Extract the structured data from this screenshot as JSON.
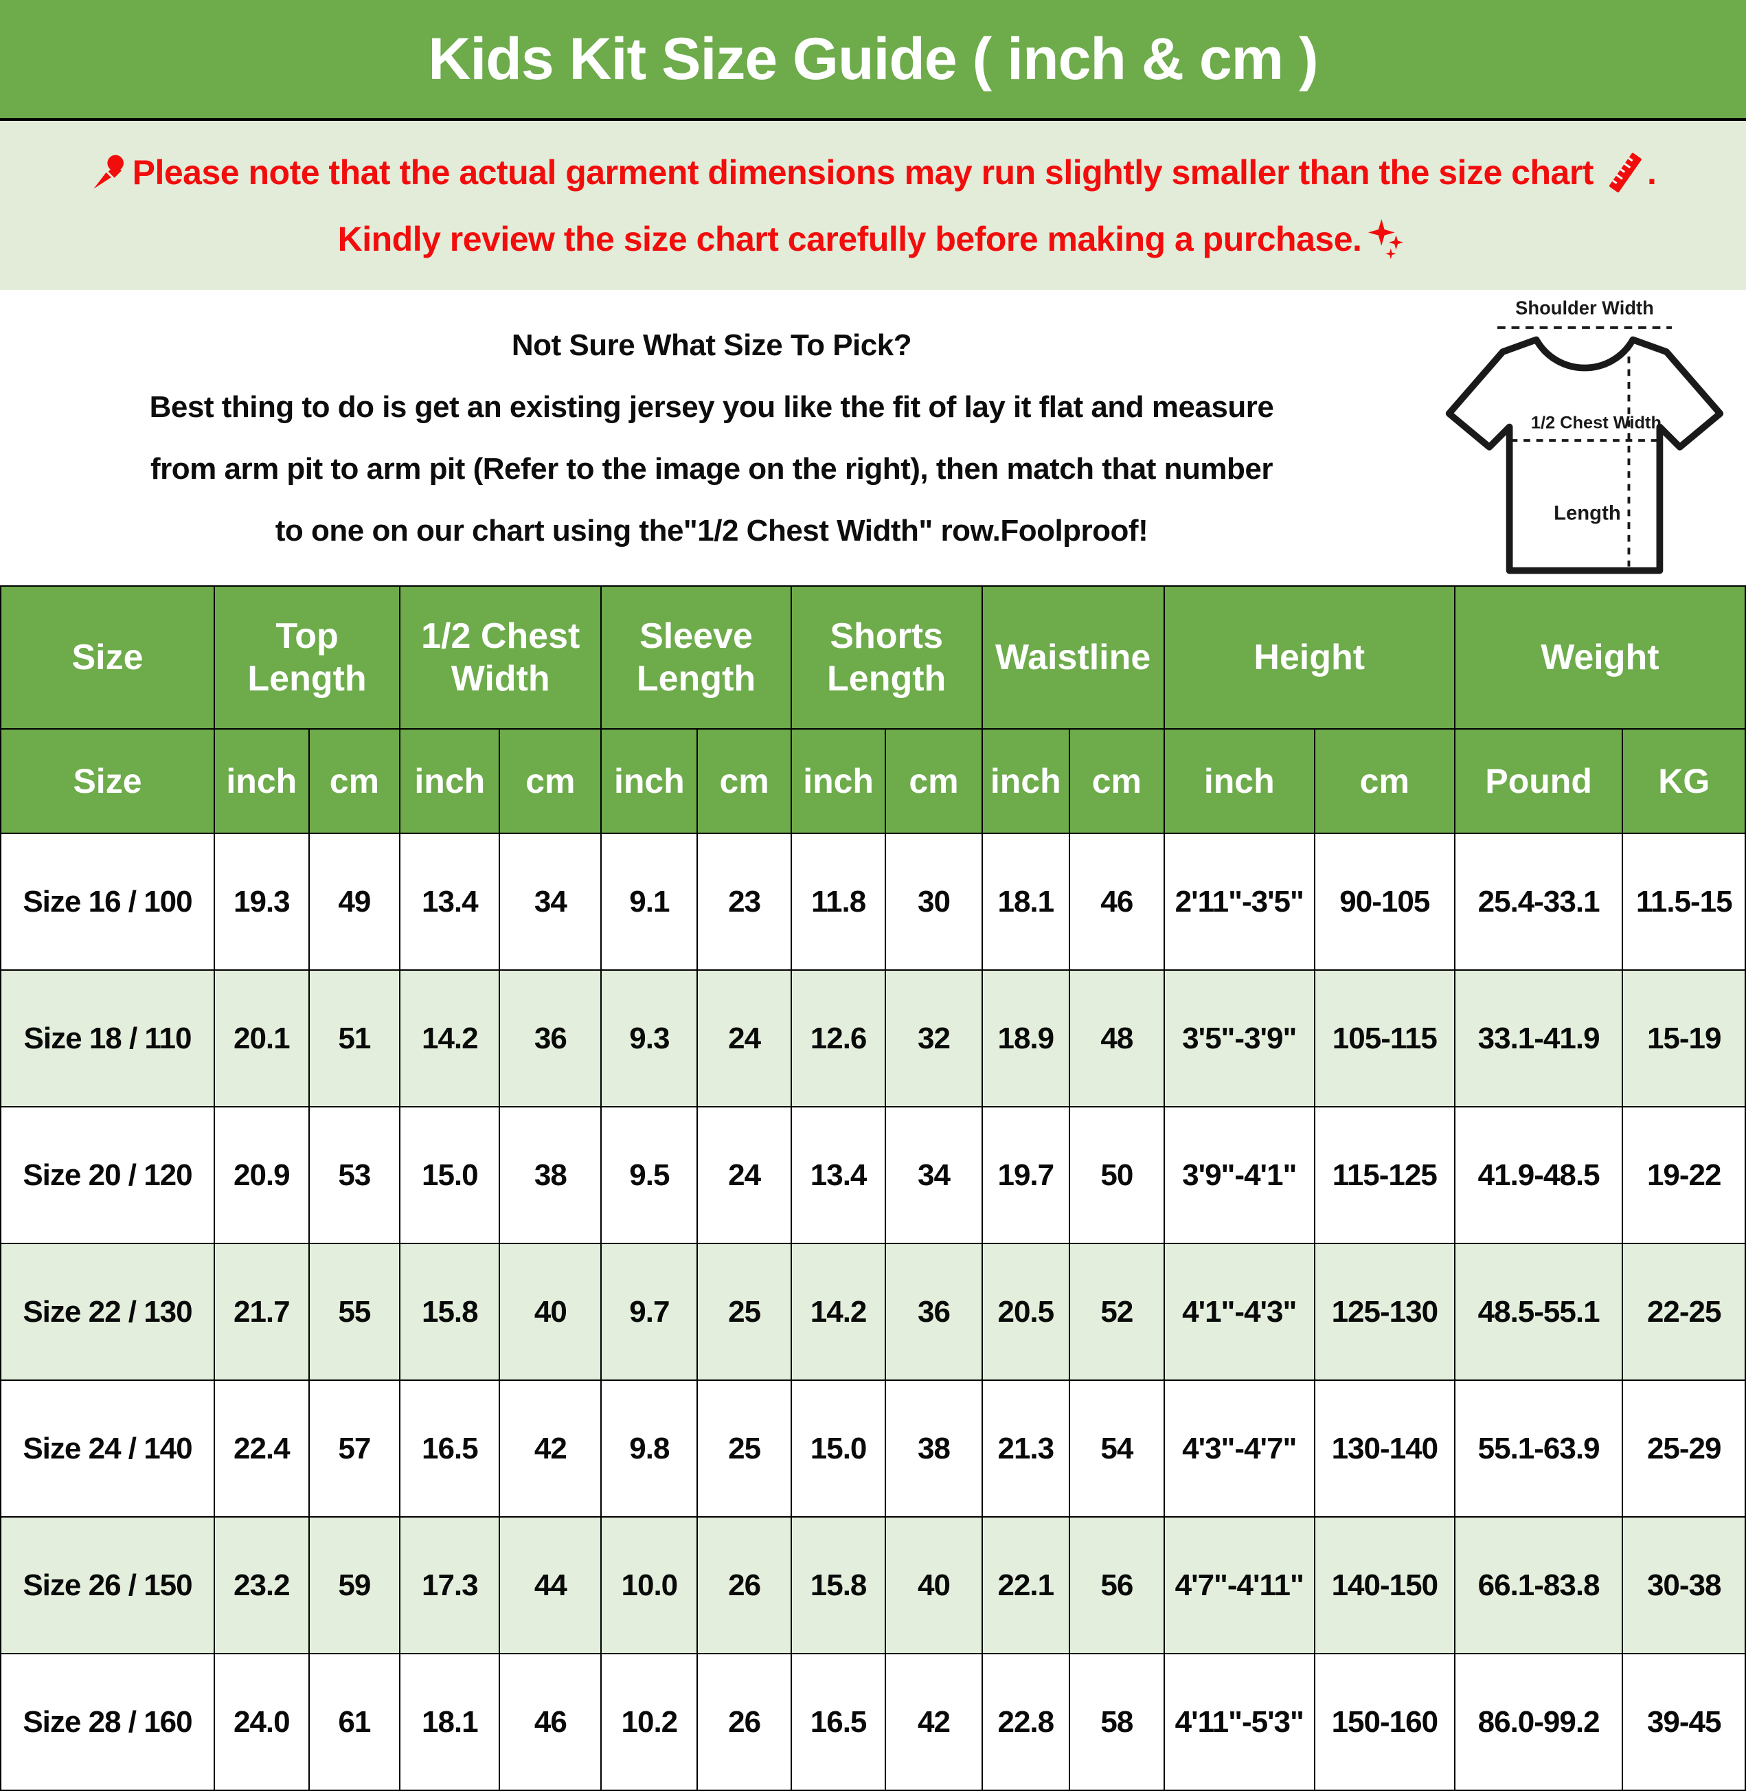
{
  "title": "Kids Kit Size Guide ( inch & cm )",
  "colors": {
    "header_green": "#6dab4b",
    "banner_light_green": "#e2ecd8",
    "row_alt_green": "#e3efdc",
    "notice_red": "#f20d0d",
    "header_text": "#ffffff",
    "body_text": "#0a0a0a"
  },
  "icons": {
    "pushpin": "pushpin-icon",
    "ruler": "ruler-icon",
    "sparkles": "sparkles-icon"
  },
  "notice": {
    "line1": "Please note that the actual garment dimensions may run slightly smaller than the size chart",
    "line1_suffix": " .",
    "line2": "Kindly review the size chart carefully before making a purchase."
  },
  "info": {
    "heading": "Not Sure What Size To Pick?",
    "line1": "Best thing to do is get an existing jersey you like the fit of lay it flat and measure",
    "line2": "from arm pit to arm pit (Refer to the image on the right), then match that number",
    "line3": "to one on our chart using the\"1/2 Chest Width\" row.Foolproof!"
  },
  "diagram": {
    "shoulder_label": "Shoulder Width",
    "chest_label": "1/2 Chest Width",
    "length_label": "Length"
  },
  "table": {
    "groups": [
      {
        "label": "Size",
        "colspan": 1
      },
      {
        "label": "Top Length",
        "colspan": 2
      },
      {
        "label": "1/2 Chest Width",
        "colspan": 2
      },
      {
        "label": "Sleeve Length",
        "colspan": 2
      },
      {
        "label": "Shorts Length",
        "colspan": 2
      },
      {
        "label": "Waistline",
        "colspan": 2
      },
      {
        "label": "Height",
        "colspan": 2
      },
      {
        "label": "Weight",
        "colspan": 2
      }
    ],
    "subheaders": [
      "Size",
      "inch",
      "cm",
      "inch",
      "cm",
      "inch",
      "cm",
      "inch",
      "cm",
      "inch",
      "cm",
      "inch",
      "cm",
      "Pound",
      "KG"
    ],
    "rows": [
      [
        "Size 16 / 100",
        "19.3",
        "49",
        "13.4",
        "34",
        "9.1",
        "23",
        "11.8",
        "30",
        "18.1",
        "46",
        "2'11\"-3'5\"",
        "90-105",
        "25.4-33.1",
        "11.5-15"
      ],
      [
        "Size 18 / 110",
        "20.1",
        "51",
        "14.2",
        "36",
        "9.3",
        "24",
        "12.6",
        "32",
        "18.9",
        "48",
        "3'5\"-3'9\"",
        "105-115",
        "33.1-41.9",
        "15-19"
      ],
      [
        "Size 20 / 120",
        "20.9",
        "53",
        "15.0",
        "38",
        "9.5",
        "24",
        "13.4",
        "34",
        "19.7",
        "50",
        "3'9\"-4'1\"",
        "115-125",
        "41.9-48.5",
        "19-22"
      ],
      [
        "Size 22 / 130",
        "21.7",
        "55",
        "15.8",
        "40",
        "9.7",
        "25",
        "14.2",
        "36",
        "20.5",
        "52",
        "4'1\"-4'3\"",
        "125-130",
        "48.5-55.1",
        "22-25"
      ],
      [
        "Size 24 / 140",
        "22.4",
        "57",
        "16.5",
        "42",
        "9.8",
        "25",
        "15.0",
        "38",
        "21.3",
        "54",
        "4'3\"-4'7\"",
        "130-140",
        "55.1-63.9",
        "25-29"
      ],
      [
        "Size 26 / 150",
        "23.2",
        "59",
        "17.3",
        "44",
        "10.0",
        "26",
        "15.8",
        "40",
        "22.1",
        "56",
        "4'7\"-4'11\"",
        "140-150",
        "66.1-83.8",
        "30-38"
      ],
      [
        "Size 28 / 160",
        "24.0",
        "61",
        "18.1",
        "46",
        "10.2",
        "26",
        "16.5",
        "42",
        "22.8",
        "58",
        "4'11\"-5'3\"",
        "150-160",
        "86.0-99.2",
        "39-45"
      ]
    ]
  },
  "chart_data": {
    "type": "table",
    "title": "Kids Kit Size Guide ( inch & cm )",
    "columns": [
      "Size",
      "Top Length inch",
      "Top Length cm",
      "1/2 Chest Width inch",
      "1/2 Chest Width cm",
      "Sleeve Length inch",
      "Sleeve Length cm",
      "Shorts Length inch",
      "Shorts Length cm",
      "Waistline inch",
      "Waistline cm",
      "Height inch",
      "Height cm",
      "Weight Pound",
      "Weight KG"
    ],
    "rows": [
      [
        "Size 16 / 100",
        19.3,
        49,
        13.4,
        34,
        9.1,
        23,
        11.8,
        30,
        18.1,
        46,
        "2'11\"-3'5\"",
        "90-105",
        "25.4-33.1",
        "11.5-15"
      ],
      [
        "Size 18 / 110",
        20.1,
        51,
        14.2,
        36,
        9.3,
        24,
        12.6,
        32,
        18.9,
        48,
        "3'5\"-3'9\"",
        "105-115",
        "33.1-41.9",
        "15-19"
      ],
      [
        "Size 20 / 120",
        20.9,
        53,
        15.0,
        38,
        9.5,
        24,
        13.4,
        34,
        19.7,
        50,
        "3'9\"-4'1\"",
        "115-125",
        "41.9-48.5",
        "19-22"
      ],
      [
        "Size 22 / 130",
        21.7,
        55,
        15.8,
        40,
        9.7,
        25,
        14.2,
        36,
        20.5,
        52,
        "4'1\"-4'3\"",
        "125-130",
        "48.5-55.1",
        "22-25"
      ],
      [
        "Size 24 / 140",
        22.4,
        57,
        16.5,
        42,
        9.8,
        25,
        15.0,
        38,
        21.3,
        54,
        "4'3\"-4'7\"",
        "130-140",
        "55.1-63.9",
        "25-29"
      ],
      [
        "Size 26 / 150",
        23.2,
        59,
        17.3,
        44,
        10.0,
        26,
        15.8,
        40,
        22.1,
        56,
        "4'7\"-4'11\"",
        "140-150",
        "66.1-83.8",
        "30-38"
      ],
      [
        "Size 28 / 160",
        24.0,
        61,
        18.1,
        46,
        10.2,
        26,
        16.5,
        42,
        22.8,
        58,
        "4'11\"-5'3\"",
        "150-160",
        "86.0-99.2",
        "39-45"
      ]
    ]
  }
}
